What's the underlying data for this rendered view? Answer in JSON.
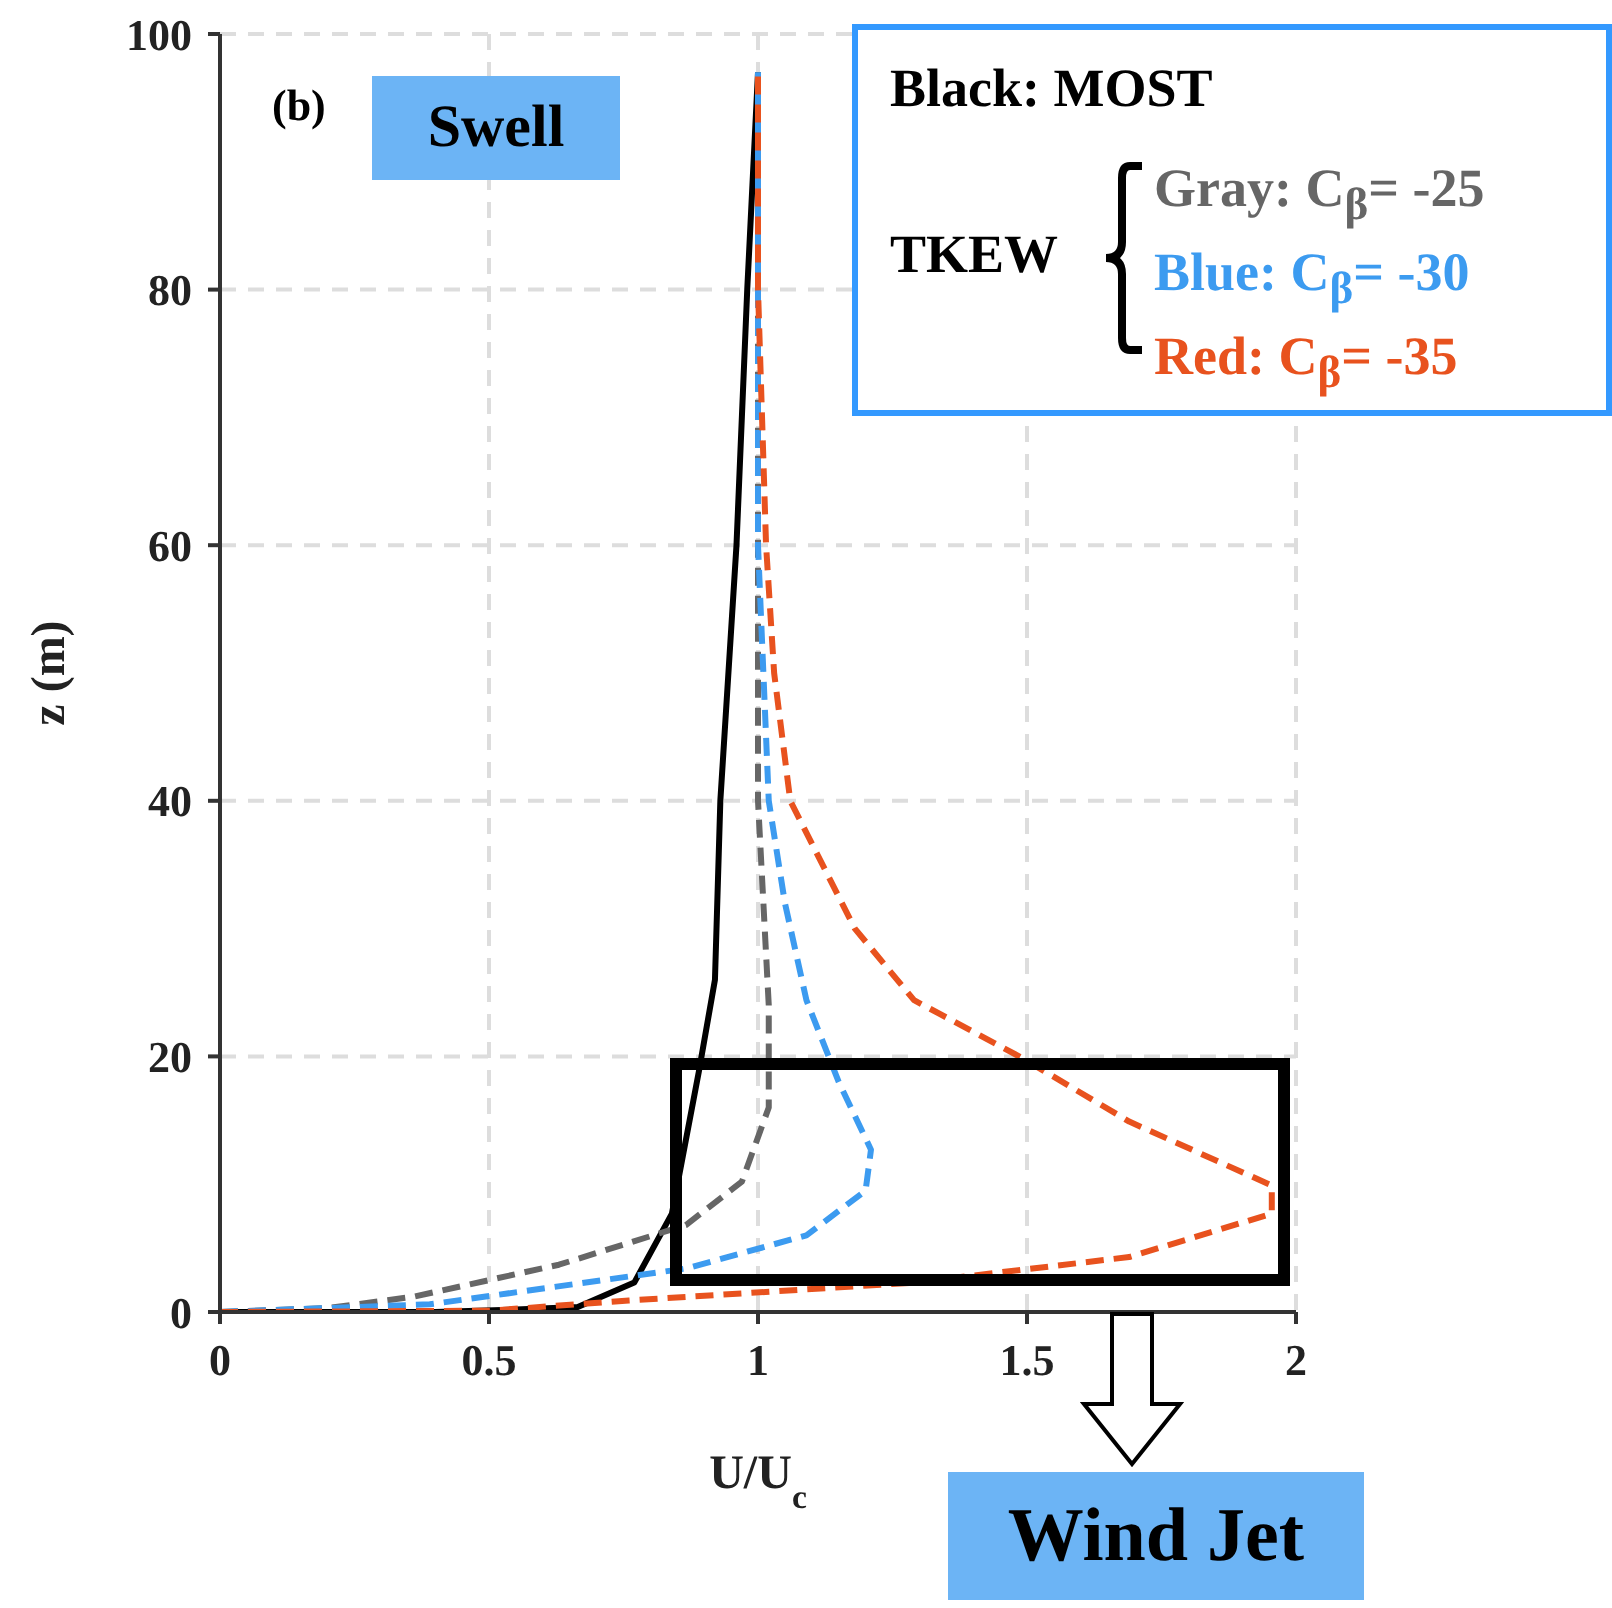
{
  "chart_data": {
    "type": "line",
    "xlabel": "U/U$_{c}$",
    "ylabel": "z (m)",
    "xlim": [
      0,
      2
    ],
    "xticks": [
      0,
      0.5,
      1,
      1.5,
      2
    ],
    "ylim": [
      0,
      100
    ],
    "yticks": [
      0,
      20,
      40,
      60,
      80,
      100
    ],
    "grid": true,
    "legend": "top right",
    "marker": "none",
    "annotations": [
      "(b)",
      "Swell",
      "Wind Jet",
      "TKEW"
    ],
    "series": [
      {
        "name": "Black: MOST",
        "color": "#000000",
        "line_style": "solid",
        "x": [
          0,
          0.4,
          0.55,
          0.665,
          0.77,
          0.84,
          0.89,
          0.92,
          0.93,
          0.96,
          0.98,
          1.0
        ],
        "values": [
          0,
          0,
          0.2,
          0.4,
          2.3,
          7.7,
          18.8,
          26,
          40,
          60,
          80,
          97
        ]
      },
      {
        "name": "Gray: C$_{β}$= -25",
        "color": "#666666",
        "line_style": "dashed",
        "x": [
          0,
          0.2,
          0.36,
          0.63,
          0.866,
          0.97,
          1.02,
          1.02,
          1.0,
          1.0,
          1.0,
          1.0
        ],
        "values": [
          0,
          0.3,
          1.2,
          3.7,
          6.8,
          10.2,
          16,
          24,
          40,
          60,
          80,
          97
        ]
      },
      {
        "name": "Blue: C$_{β}$= -30",
        "color": "#3c9bf0",
        "line_style": "dashed",
        "x": [
          0,
          0.39,
          0.866,
          1.09,
          1.2,
          1.21,
          1.15,
          1.09,
          1.05,
          1.02,
          1.0,
          1.0,
          1.0
        ],
        "values": [
          0,
          0.6,
          3.4,
          6,
          9.5,
          12.7,
          18,
          24.4,
          32,
          40,
          60,
          80,
          97
        ]
      },
      {
        "name": "Red: C$_{β}$= -35",
        "color": "#e8521e",
        "line_style": "dashed",
        "x": [
          0,
          0.5,
          0.76,
          1.29,
          1.69,
          1.955,
          1.955,
          1.69,
          1.49,
          1.29,
          1.18,
          1.06,
          1.03,
          1.015,
          1.0,
          1.0
        ],
        "values": [
          0,
          0.1,
          0.9,
          2.3,
          4.3,
          7.7,
          9.9,
          14.9,
          19.9,
          24.4,
          30,
          40,
          50,
          60,
          80,
          97
        ]
      }
    ]
  }
}
